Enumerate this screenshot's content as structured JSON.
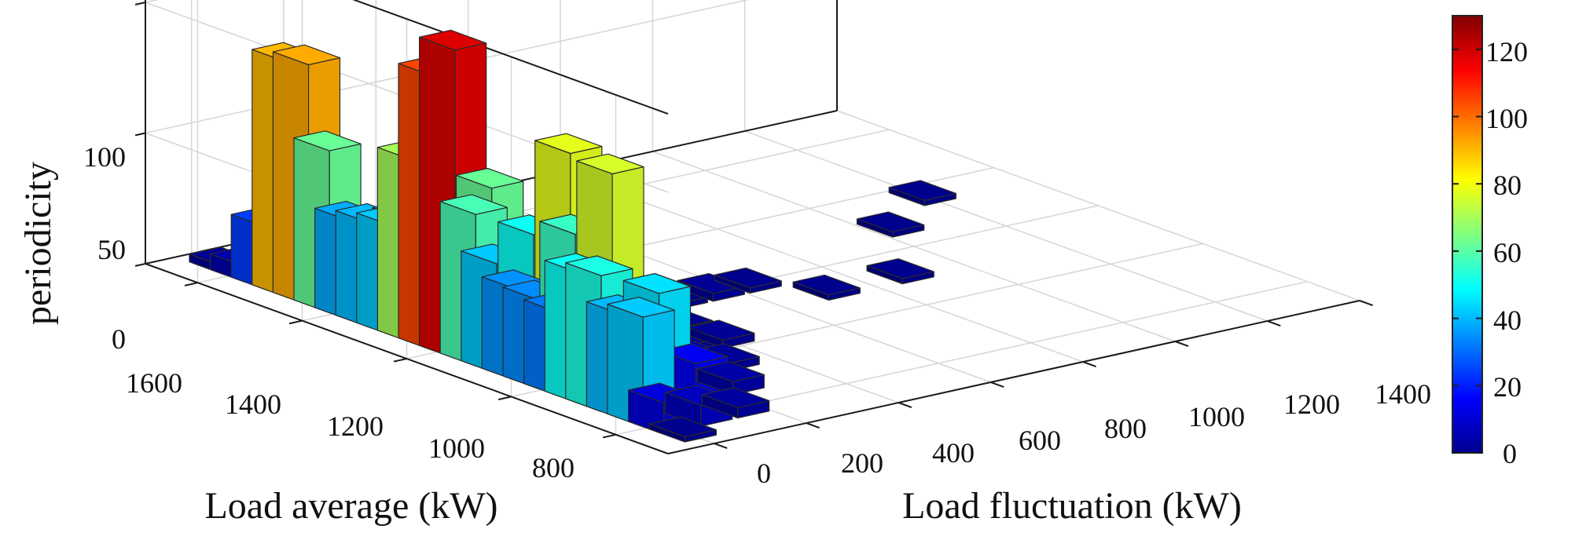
{
  "chart_data": {
    "type": "bar3d",
    "title": "",
    "xlabel": "Load fluctuation (kW)",
    "ylabel": "Load average (kW)",
    "zlabel": "periodicity",
    "x_ticks": [
      "0",
      "200",
      "400",
      "600",
      "800",
      "1000",
      "1200",
      "1400"
    ],
    "y_ticks": [
      "1600",
      "1400",
      "1200",
      "1000",
      "800"
    ],
    "z_ticks": [
      "0",
      "50",
      "100"
    ],
    "xlim": [
      -100,
      1400
    ],
    "ylim": [
      700,
      1700
    ],
    "zlim": [
      0,
      130
    ],
    "grid": true,
    "colorbar": {
      "colormap": "jet",
      "range": [
        0,
        130
      ],
      "ticks": [
        "0",
        "20",
        "40",
        "60",
        "80",
        "100",
        "120"
      ],
      "position": "right"
    },
    "bars": [
      {
        "x": 0,
        "y": 1640,
        "z": 3
      },
      {
        "x": 0,
        "y": 1600,
        "z": 6
      },
      {
        "x": 0,
        "y": 1560,
        "z": 24
      },
      {
        "x": 0,
        "y": 1520,
        "z": 90
      },
      {
        "x": 0,
        "y": 1480,
        "z": 92
      },
      {
        "x": 0,
        "y": 1440,
        "z": 62
      },
      {
        "x": 0,
        "y": 1400,
        "z": 38
      },
      {
        "x": 0,
        "y": 1360,
        "z": 40
      },
      {
        "x": 0,
        "y": 1320,
        "z": 42
      },
      {
        "x": 0,
        "y": 1280,
        "z": 70
      },
      {
        "x": 0,
        "y": 1240,
        "z": 105
      },
      {
        "x": 0,
        "y": 1200,
        "z": 118
      },
      {
        "x": 0,
        "y": 1160,
        "z": 58
      },
      {
        "x": 0,
        "y": 1120,
        "z": 42
      },
      {
        "x": 0,
        "y": 1080,
        "z": 35
      },
      {
        "x": 0,
        "y": 1040,
        "z": 34
      },
      {
        "x": 0,
        "y": 1000,
        "z": 32
      },
      {
        "x": 0,
        "y": 960,
        "z": 50
      },
      {
        "x": 0,
        "y": 920,
        "z": 52
      },
      {
        "x": 0,
        "y": 880,
        "z": 40
      },
      {
        "x": 0,
        "y": 840,
        "z": 42
      },
      {
        "x": 0,
        "y": 800,
        "z": 12
      },
      {
        "x": 0,
        "y": 760,
        "z": 2
      },
      {
        "x": 80,
        "y": 1520,
        "z": 14
      },
      {
        "x": 80,
        "y": 1440,
        "z": 20
      },
      {
        "x": 80,
        "y": 1360,
        "z": 38
      },
      {
        "x": 80,
        "y": 1280,
        "z": 100
      },
      {
        "x": 80,
        "y": 1200,
        "z": 62
      },
      {
        "x": 80,
        "y": 1120,
        "z": 50
      },
      {
        "x": 80,
        "y": 1040,
        "z": 56
      },
      {
        "x": 80,
        "y": 960,
        "z": 38
      },
      {
        "x": 80,
        "y": 880,
        "z": 45
      },
      {
        "x": 80,
        "y": 800,
        "z": 8
      },
      {
        "x": 160,
        "y": 1280,
        "z": 18
      },
      {
        "x": 160,
        "y": 1200,
        "z": 12
      },
      {
        "x": 160,
        "y": 1120,
        "z": 78
      },
      {
        "x": 160,
        "y": 1040,
        "z": 76
      },
      {
        "x": 160,
        "y": 960,
        "z": 20
      },
      {
        "x": 160,
        "y": 880,
        "z": 15
      },
      {
        "x": 160,
        "y": 800,
        "z": 4
      },
      {
        "x": 240,
        "y": 1200,
        "z": 10
      },
      {
        "x": 240,
        "y": 1120,
        "z": 12
      },
      {
        "x": 240,
        "y": 1040,
        "z": 15
      },
      {
        "x": 240,
        "y": 960,
        "z": 8
      },
      {
        "x": 240,
        "y": 880,
        "z": 5
      },
      {
        "x": 320,
        "y": 1200,
        "z": 4
      },
      {
        "x": 320,
        "y": 1120,
        "z": 6
      },
      {
        "x": 320,
        "y": 1040,
        "z": 4
      },
      {
        "x": 320,
        "y": 960,
        "z": 3
      },
      {
        "x": 400,
        "y": 1120,
        "z": 2
      },
      {
        "x": 400,
        "y": 1040,
        "z": 3
      },
      {
        "x": 480,
        "y": 1200,
        "z": 2
      },
      {
        "x": 560,
        "y": 1200,
        "z": 3
      },
      {
        "x": 640,
        "y": 1200,
        "z": 2
      },
      {
        "x": 720,
        "y": 1120,
        "z": 2
      },
      {
        "x": 880,
        "y": 1120,
        "z": 2
      },
      {
        "x": 1040,
        "y": 1280,
        "z": 2
      },
      {
        "x": 1200,
        "y": 1360,
        "z": 2
      }
    ]
  }
}
